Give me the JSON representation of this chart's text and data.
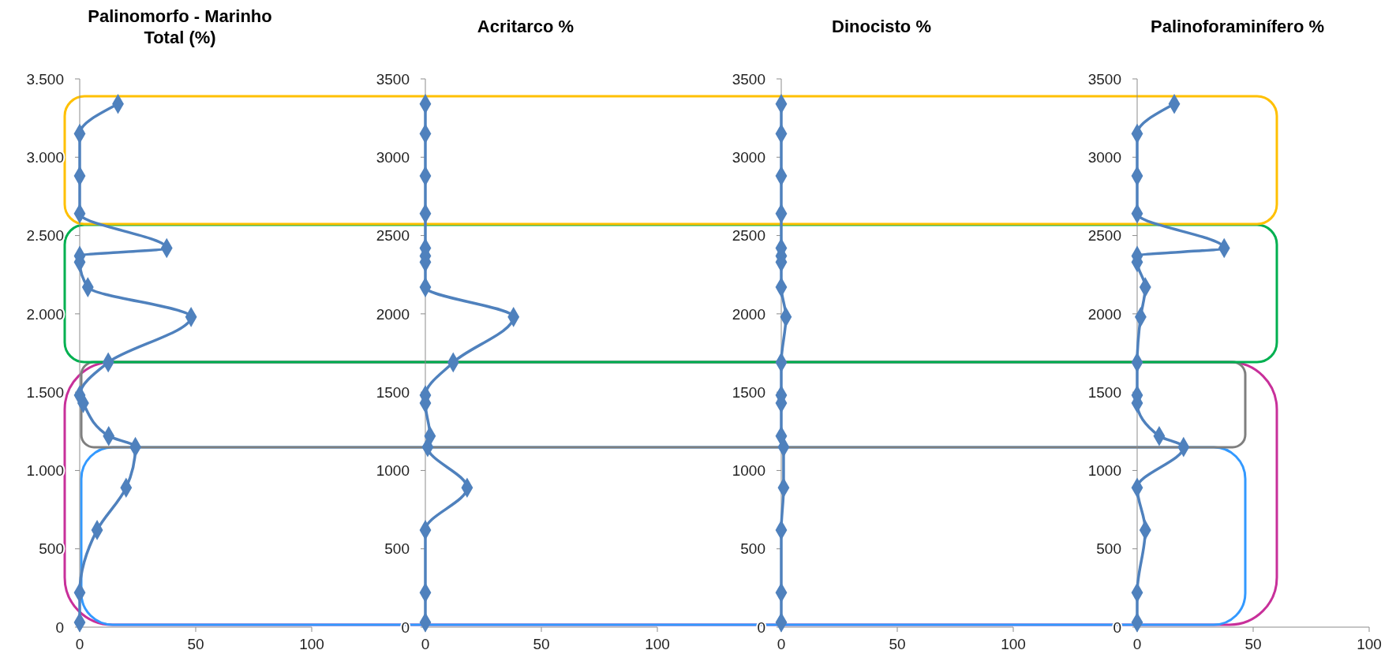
{
  "chart_data": [
    {
      "type": "line",
      "title": "Palinomorfo - Marinho Total (%)",
      "xlim": [
        0,
        100
      ],
      "xticks": [
        0,
        50,
        100
      ],
      "ylim": [
        0,
        3500
      ],
      "yticks": [
        0,
        {
          "value": 500,
          "label": "500"
        },
        {
          "value": 1000,
          "label": "1.000"
        },
        {
          "value": 1500,
          "label": "1.500"
        },
        {
          "value": 2000,
          "label": "2.000"
        },
        {
          "value": 2500,
          "label": "2.500"
        },
        {
          "value": 3000,
          "label": "3.000"
        },
        {
          "value": 3500,
          "label": "3.500"
        }
      ],
      "marker": "diamond",
      "grid": false,
      "series": [
        {
          "color": "#4f81bd",
          "x": [
            0,
            0,
            7.5,
            20,
            24,
            12.5,
            1.5,
            0,
            12.3,
            48,
            3.5,
            0,
            0,
            37.5,
            0,
            0,
            0,
            16.5
          ],
          "values": [
            30,
            220,
            620,
            890,
            1150,
            1220,
            1430,
            1480,
            1690,
            1980,
            2170,
            2330,
            2370,
            2420,
            2640,
            2880,
            3150,
            3340
          ]
        }
      ]
    },
    {
      "type": "line",
      "title": "Acritarco %",
      "xlim": [
        0,
        100
      ],
      "xticks": [
        0,
        50,
        100
      ],
      "ylim": [
        0,
        3500
      ],
      "yticks": [
        0,
        500,
        1000,
        1500,
        2000,
        2500,
        3000,
        3500
      ],
      "marker": "diamond",
      "grid": false,
      "series": [
        {
          "color": "#4f81bd",
          "x": [
            0,
            0,
            0,
            18,
            1,
            2,
            0,
            0,
            12,
            38,
            0,
            0,
            0,
            0,
            0,
            0,
            0,
            0
          ],
          "values": [
            30,
            220,
            620,
            890,
            1150,
            1220,
            1430,
            1480,
            1690,
            1980,
            2170,
            2330,
            2370,
            2420,
            2640,
            2880,
            3150,
            3340
          ]
        }
      ]
    },
    {
      "type": "line",
      "title": "Dinocisto %",
      "xlim": [
        0,
        100
      ],
      "xticks": [
        0,
        50,
        100
      ],
      "ylim": [
        0,
        3500
      ],
      "yticks": [
        0,
        500,
        1000,
        1500,
        2000,
        2500,
        3000,
        3500
      ],
      "marker": "diamond",
      "grid": false,
      "series": [
        {
          "color": "#4f81bd",
          "x": [
            0,
            0,
            0,
            1,
            1,
            0,
            0,
            0,
            0,
            2,
            0,
            0,
            0,
            0,
            0,
            0,
            0,
            0
          ],
          "values": [
            30,
            220,
            620,
            890,
            1150,
            1220,
            1430,
            1480,
            1690,
            1980,
            2170,
            2330,
            2370,
            2420,
            2640,
            2880,
            3150,
            3340
          ]
        }
      ]
    },
    {
      "type": "line",
      "title": "Palinoforaminífero %",
      "xlim": [
        0,
        100
      ],
      "xticks": [
        0,
        50,
        100
      ],
      "ylim": [
        0,
        3500
      ],
      "yticks": [
        0,
        500,
        1000,
        1500,
        2000,
        2500,
        3000,
        3500
      ],
      "marker": "diamond",
      "grid": false,
      "series": [
        {
          "color": "#4f81bd",
          "x": [
            0,
            0,
            3.5,
            0,
            20,
            9.5,
            0,
            0,
            0,
            1.5,
            3.5,
            0,
            0,
            37.5,
            0,
            0,
            0,
            16
          ],
          "values": [
            30,
            220,
            620,
            890,
            1150,
            1220,
            1430,
            1480,
            1690,
            1980,
            2170,
            2330,
            2370,
            2420,
            2640,
            2880,
            3150,
            3340
          ]
        }
      ]
    }
  ]
}
